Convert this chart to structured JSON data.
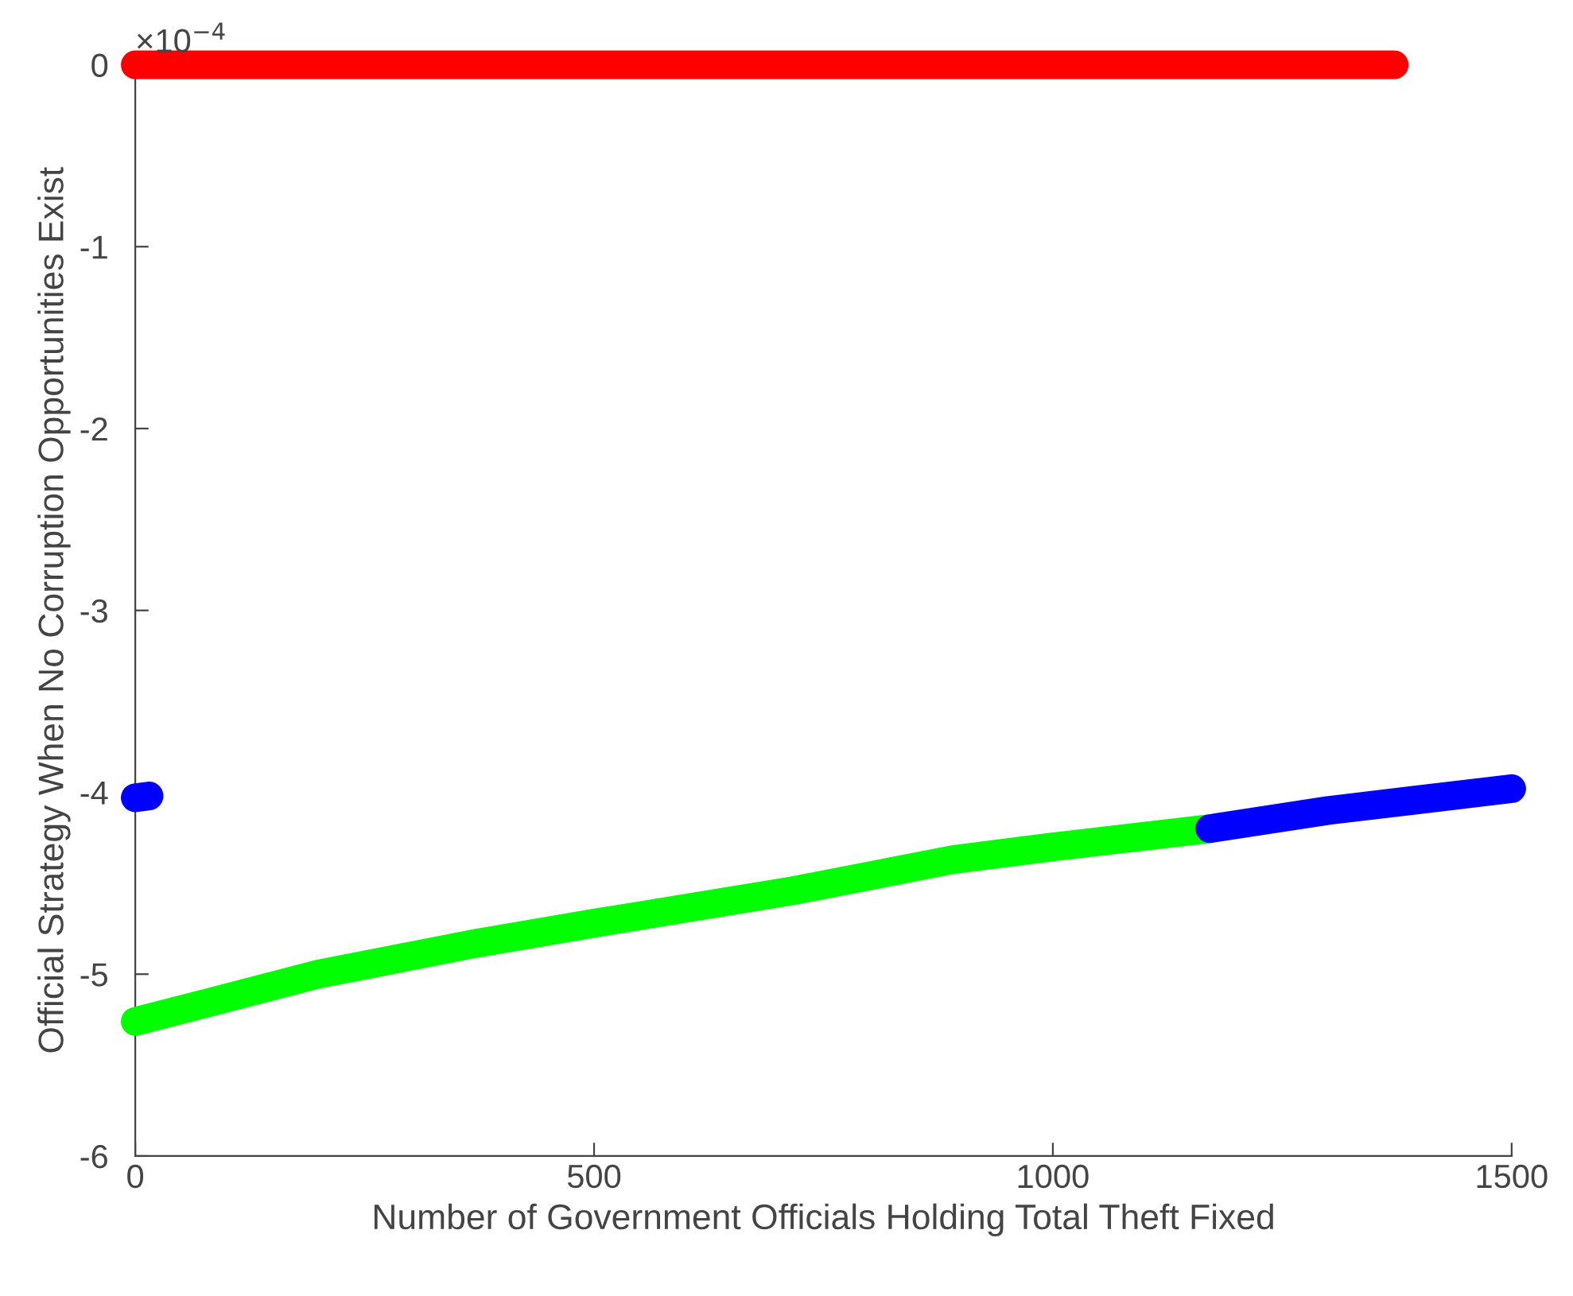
{
  "chart_data": {
    "type": "line",
    "xlabel": "Number of Government Officials Holding Total Theft Fixed",
    "ylabel": "Official Strategy When No Corruption Opportunities Exist",
    "xlim": [
      0,
      1500
    ],
    "xticks": [
      0,
      500,
      1000,
      1500
    ],
    "ylim": [
      -6,
      0
    ],
    "yticks": [
      -6,
      -5,
      -4,
      -3,
      -2,
      -1,
      0
    ],
    "annotations": [
      "×10$^{−4}$"
    ],
    "grid": false,
    "line_style": "solid",
    "series": [
      {
        "color": "#ff0000",
        "x": [
          0,
          1372
        ],
        "values": [
          0,
          0
        ]
      },
      {
        "color": "#0000ff",
        "x": [
          0,
          15
        ],
        "values": [
          -4.03,
          -4.02
        ]
      },
      {
        "color": "#00ff00",
        "x": [
          0,
          100,
          199,
          372,
          500,
          718,
          891,
          1000,
          1171
        ],
        "values": [
          -5.26,
          -5.13,
          -5.0,
          -4.83,
          -4.72,
          -4.54,
          -4.37,
          -4.3,
          -4.2
        ]
      },
      {
        "color": "#0000ff",
        "x": [
          1171,
          1300,
          1500
        ],
        "values": [
          -4.2,
          -4.1,
          -3.98
        ]
      }
    ]
  }
}
